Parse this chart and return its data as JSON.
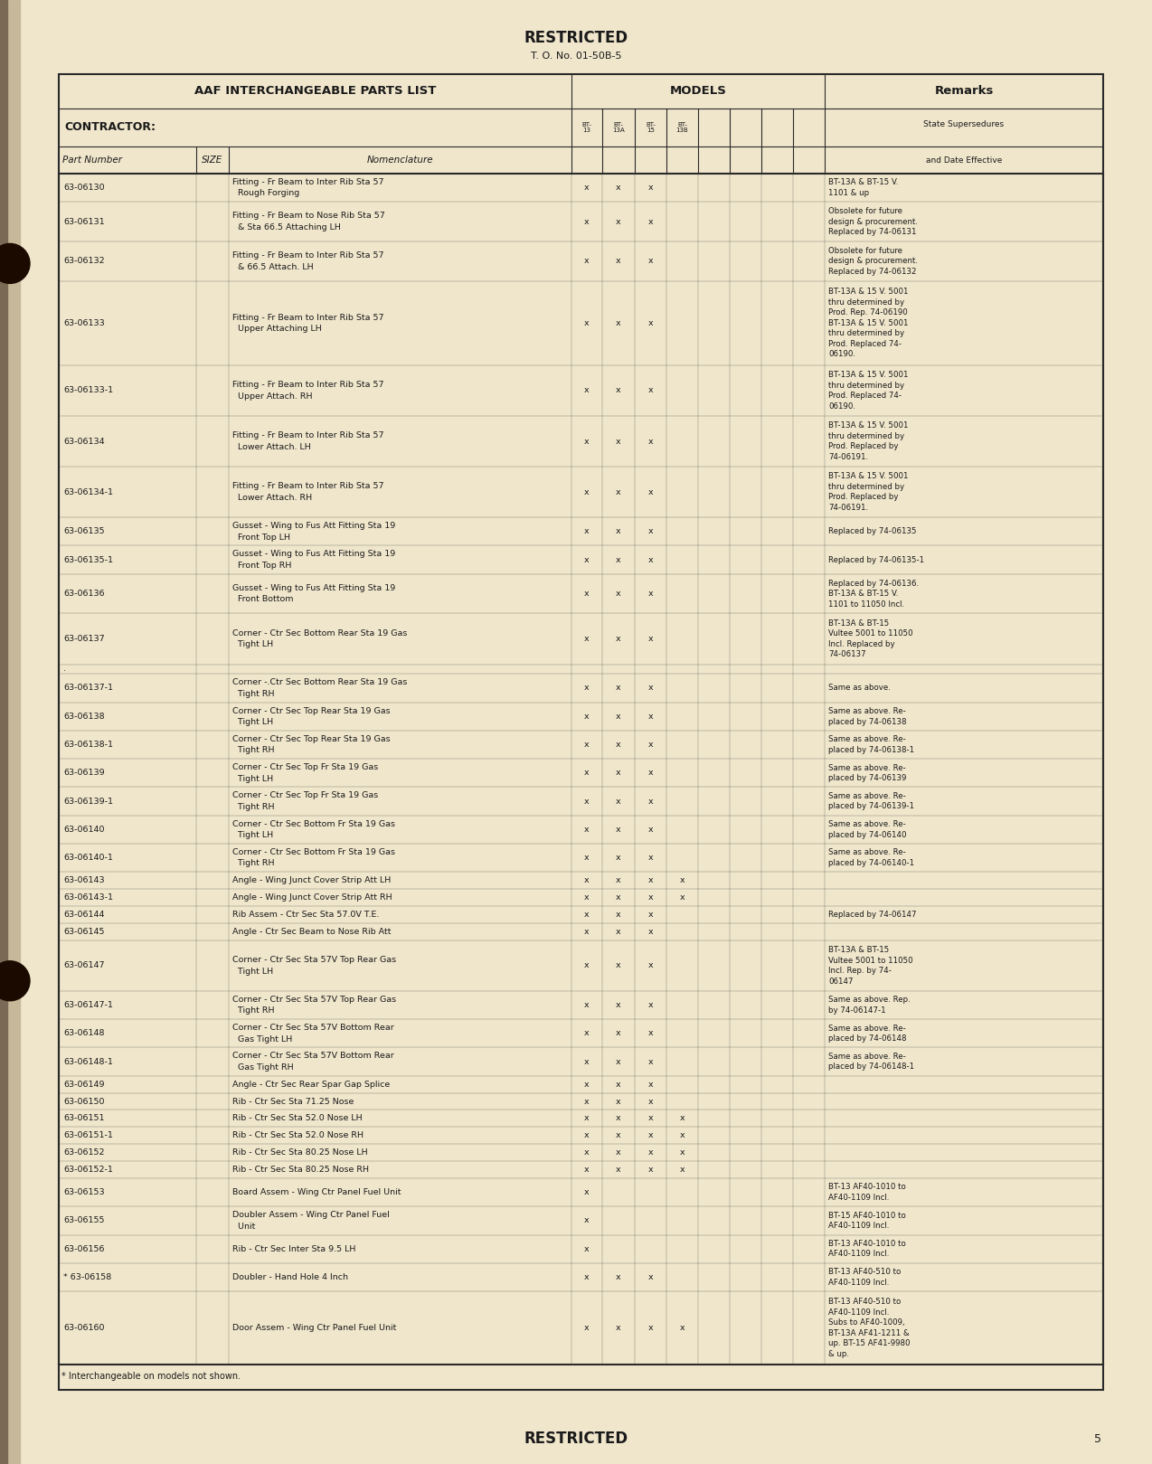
{
  "page_bg": "#f0e6cc",
  "title_top": "RESTRICTED",
  "subtitle_top": "T. O. No. 01-50B-5",
  "title_bottom": "RESTRICTED",
  "page_number": "5",
  "footnote": "* Interchangeable on models not shown.",
  "header_main": "AAF INTERCHANGEABLE PARTS LIST",
  "header_models": "MODELS",
  "header_remarks": "Remarks",
  "header_contractor": "CONTRACTOR:",
  "header_part_number": "Part Number",
  "header_size": "SIZE",
  "header_nomenclature": "Nomenclature",
  "header_state": "State Supersedures",
  "header_date": "and Date Effective",
  "rows": [
    {
      "part": "63-06130",
      "nom": "Fitting - Fr Beam to Inter Rib Sta 57\n  Rough Forging",
      "bt13": "x",
      "bt13a": "x",
      "bt15": "x",
      "bt13b": "",
      "extra": [
        "",
        "",
        "",
        ""
      ],
      "remarks": "BT-13A & BT-15 V.\n1101 & up"
    },
    {
      "part": "63-06131",
      "nom": "Fitting - Fr Beam to Nose Rib Sta 57\n  & Sta 66.5 Attaching LH",
      "bt13": "x",
      "bt13a": "x",
      "bt15": "x",
      "bt13b": "",
      "extra": [
        "",
        "",
        "",
        ""
      ],
      "remarks": "Obsolete for future\ndesign & procurement.\nReplaced by 74-06131"
    },
    {
      "part": "63-06132",
      "nom": "Fitting - Fr Beam to Inter Rib Sta 57\n  & 66.5 Attach. LH",
      "bt13": "x",
      "bt13a": "x",
      "bt15": "x",
      "bt13b": "",
      "extra": [
        "",
        "",
        "",
        ""
      ],
      "remarks": "Obsolete for future\ndesign & procurement.\nReplaced by 74-06132"
    },
    {
      "part": "63-06133",
      "nom": "Fitting - Fr Beam to Inter Rib Sta 57\n  Upper Attaching LH",
      "bt13": "x",
      "bt13a": "x",
      "bt15": "x",
      "bt13b": "",
      "extra": [
        "",
        "",
        "",
        ""
      ],
      "remarks": "BT-13A & 15 V. 5001\nthru determined by\nProd. Rep. 74-06190\nBT-13A & 15 V. 5001\nthru determined by\nProd. Replaced 74-\n06190."
    },
    {
      "part": "63-06133-1",
      "nom": "Fitting - Fr Beam to Inter Rib Sta 57\n  Upper Attach. RH",
      "bt13": "x",
      "bt13a": "x",
      "bt15": "x",
      "bt13b": "",
      "extra": [
        "",
        "",
        "",
        ""
      ],
      "remarks": "BT-13A & 15 V. 5001\nthru determined by\nProd. Replaced 74-\n06190."
    },
    {
      "part": "63-06134",
      "nom": "Fitting - Fr Beam to Inter Rib Sta 57\n  Lower Attach. LH",
      "bt13": "x",
      "bt13a": "x",
      "bt15": "x",
      "bt13b": "",
      "extra": [
        "",
        "",
        "",
        ""
      ],
      "remarks": "BT-13A & 15 V. 5001\nthru determined by\nProd. Replaced by\n74-06191."
    },
    {
      "part": "63-06134-1",
      "nom": "Fitting - Fr Beam to Inter Rib Sta 57\n  Lower Attach. RH",
      "bt13": "x",
      "bt13a": "x",
      "bt15": "x",
      "bt13b": "",
      "extra": [
        "",
        "",
        "",
        ""
      ],
      "remarks": "BT-13A & 15 V. 5001\nthru determined by\nProd. Replaced by\n74-06191."
    },
    {
      "part": "63-06135",
      "nom": "Gusset - Wing to Fus Att Fitting Sta 19\n  Front Top LH",
      "bt13": "x",
      "bt13a": "x",
      "bt15": "x",
      "bt13b": "",
      "extra": [
        "",
        "",
        "",
        ""
      ],
      "remarks": "Replaced by 74-06135"
    },
    {
      "part": "63-06135-1",
      "nom": "Gusset - Wing to Fus Att Fitting Sta 19\n  Front Top RH",
      "bt13": "x",
      "bt13a": "x",
      "bt15": "x",
      "bt13b": "",
      "extra": [
        "",
        "",
        "",
        ""
      ],
      "remarks": "Replaced by 74-06135-1"
    },
    {
      "part": "63-06136",
      "nom": "Gusset - Wing to Fus Att Fitting Sta 19\n  Front Bottom",
      "bt13": "x",
      "bt13a": "x",
      "bt15": "x",
      "bt13b": "",
      "extra": [
        "",
        "",
        "",
        ""
      ],
      "remarks": "Replaced by 74-06136.\nBT-13A & BT-15 V.\n1101 to 11050 Incl."
    },
    {
      "part": "63-06137",
      "nom": "Corner - Ctr Sec Bottom Rear Sta 19 Gas\n  Tight LH",
      "bt13": "x",
      "bt13a": "x",
      "bt15": "x",
      "bt13b": "",
      "extra": [
        "",
        "",
        "",
        ""
      ],
      "remarks": "BT-13A & BT-15\nVultee 5001 to 11050\nIncl. Replaced by\n74-06137"
    },
    {
      "part": ".",
      "nom": "",
      "bt13": "",
      "bt13a": "",
      "bt15": "",
      "bt13b": "",
      "extra": [
        "",
        "",
        "",
        ""
      ],
      "remarks": ""
    },
    {
      "part": "63-06137-1",
      "nom": "Corner -.Ctr Sec Bottom Rear Sta 19 Gas\n  Tight RH",
      "bt13": "x",
      "bt13a": "x",
      "bt15": "x",
      "bt13b": "",
      "extra": [
        "",
        "",
        "",
        ""
      ],
      "remarks": "Same as above."
    },
    {
      "part": "63-06138",
      "nom": "Corner - Ctr Sec Top Rear Sta 19 Gas\n  Tight LH",
      "bt13": "x",
      "bt13a": "x",
      "bt15": "x",
      "bt13b": "",
      "extra": [
        "",
        "",
        "",
        ""
      ],
      "remarks": "Same as above. Re-\nplaced by 74-06138"
    },
    {
      "part": "63-06138-1",
      "nom": "Corner - Ctr Sec Top Rear Sta 19 Gas\n  Tight RH",
      "bt13": "x",
      "bt13a": "x",
      "bt15": "x",
      "bt13b": "",
      "extra": [
        "",
        "",
        "",
        ""
      ],
      "remarks": "Same as above. Re-\nplaced by 74-06138-1"
    },
    {
      "part": "63-06139",
      "nom": "Corner - Ctr Sec Top Fr Sta 19 Gas\n  Tight LH",
      "bt13": "x",
      "bt13a": "x",
      "bt15": "x",
      "bt13b": "",
      "extra": [
        "",
        "",
        "",
        ""
      ],
      "remarks": "Same as above. Re-\nplaced by 74-06139"
    },
    {
      "part": "63-06139-1",
      "nom": "Corner - Ctr Sec Top Fr Sta 19 Gas\n  Tight RH",
      "bt13": "x",
      "bt13a": "x",
      "bt15": "x",
      "bt13b": "",
      "extra": [
        "",
        "",
        "",
        ""
      ],
      "remarks": "Same as above. Re-\nplaced by 74-06139-1"
    },
    {
      "part": "63-06140",
      "nom": "Corner - Ctr Sec Bottom Fr Sta 19 Gas\n  Tight LH",
      "bt13": "x",
      "bt13a": "x",
      "bt15": "x",
      "bt13b": "",
      "extra": [
        "",
        "",
        "",
        ""
      ],
      "remarks": "Same as above. Re-\nplaced by 74-06140"
    },
    {
      "part": "63-06140-1",
      "nom": "Corner - Ctr Sec Bottom Fr Sta 19 Gas\n  Tight RH",
      "bt13": "x",
      "bt13a": "x",
      "bt15": "x",
      "bt13b": "",
      "extra": [
        "",
        "",
        "",
        ""
      ],
      "remarks": "Same as above. Re-\nplaced by 74-06140-1"
    },
    {
      "part": "63-06143",
      "nom": "Angle - Wing Junct Cover Strip Att LH",
      "bt13": "x",
      "bt13a": "x",
      "bt15": "x",
      "bt13b": "x",
      "extra": [
        "",
        "",
        "",
        ""
      ],
      "remarks": ""
    },
    {
      "part": "63-06143-1",
      "nom": "Angle - Wing Junct Cover Strip Att RH",
      "bt13": "x",
      "bt13a": "x",
      "bt15": "x",
      "bt13b": "x",
      "extra": [
        "",
        "",
        "",
        ""
      ],
      "remarks": ""
    },
    {
      "part": "63-06144",
      "nom": "Rib Assem - Ctr Sec Sta 57.0V T.E.",
      "bt13": "x",
      "bt13a": "x",
      "bt15": "x",
      "bt13b": "",
      "extra": [
        "",
        "",
        "",
        ""
      ],
      "remarks": "Replaced by 74-06147"
    },
    {
      "part": "63-06145",
      "nom": "Angle - Ctr Sec Beam to Nose Rib Att",
      "bt13": "x",
      "bt13a": "x",
      "bt15": "x",
      "bt13b": "",
      "extra": [
        "",
        "",
        "",
        ""
      ],
      "remarks": ""
    },
    {
      "part": "63-06147",
      "nom": "Corner - Ctr Sec Sta 57V Top Rear Gas\n  Tight LH",
      "bt13": "x",
      "bt13a": "x",
      "bt15": "x",
      "bt13b": "",
      "extra": [
        "",
        "",
        "",
        ""
      ],
      "remarks": "BT-13A & BT-15\nVultee 5001 to 11050\nIncl. Rep. by 74-\n06147"
    },
    {
      "part": "63-06147-1",
      "nom": "Corner - Ctr Sec Sta 57V Top Rear Gas\n  Tight RH",
      "bt13": "x",
      "bt13a": "x",
      "bt15": "x",
      "bt13b": "",
      "extra": [
        "",
        "",
        "",
        ""
      ],
      "remarks": "Same as above. Rep.\nby 74-06147-1"
    },
    {
      "part": "63-06148",
      "nom": "Corner - Ctr Sec Sta 57V Bottom Rear\n  Gas Tight LH",
      "bt13": "x",
      "bt13a": "x",
      "bt15": "x",
      "bt13b": "",
      "extra": [
        "",
        "",
        "",
        ""
      ],
      "remarks": "Same as above. Re-\nplaced by 74-06148"
    },
    {
      "part": "63-06148-1",
      "nom": "Corner - Ctr Sec Sta 57V Bottom Rear\n  Gas Tight RH",
      "bt13": "x",
      "bt13a": "x",
      "bt15": "x",
      "bt13b": "",
      "extra": [
        "",
        "",
        "",
        ""
      ],
      "remarks": "Same as above. Re-\nplaced by 74-06148-1"
    },
    {
      "part": "63-06149",
      "nom": "Angle - Ctr Sec Rear Spar Gap Splice",
      "bt13": "x",
      "bt13a": "x",
      "bt15": "x",
      "bt13b": "",
      "extra": [
        "",
        "",
        "",
        ""
      ],
      "remarks": ""
    },
    {
      "part": "63-06150",
      "nom": "Rib - Ctr Sec Sta 71.25 Nose",
      "bt13": "x",
      "bt13a": "x",
      "bt15": "x",
      "bt13b": "",
      "extra": [
        "",
        "",
        "",
        ""
      ],
      "remarks": ""
    },
    {
      "part": "63-06151",
      "nom": "Rib - Ctr Sec Sta 52.0 Nose LH",
      "bt13": "x",
      "bt13a": "x",
      "bt15": "x",
      "bt13b": "x",
      "extra": [
        "",
        "",
        "",
        ""
      ],
      "remarks": ""
    },
    {
      "part": "63-06151-1",
      "nom": "Rib - Ctr Sec Sta 52.0 Nose RH",
      "bt13": "x",
      "bt13a": "x",
      "bt15": "x",
      "bt13b": "x",
      "extra": [
        "",
        "",
        "",
        ""
      ],
      "remarks": ""
    },
    {
      "part": "63-06152",
      "nom": "Rib - Ctr Sec Sta 80.25 Nose LH",
      "bt13": "x",
      "bt13a": "x",
      "bt15": "x",
      "bt13b": "x",
      "extra": [
        "",
        "",
        "",
        ""
      ],
      "remarks": ""
    },
    {
      "part": "63-06152-1",
      "nom": "Rib - Ctr Sec Sta 80.25 Nose RH",
      "bt13": "x",
      "bt13a": "x",
      "bt15": "x",
      "bt13b": "x",
      "extra": [
        "",
        "",
        "",
        ""
      ],
      "remarks": ""
    },
    {
      "part": "63-06153",
      "nom": "Board Assem - Wing Ctr Panel Fuel Unit",
      "bt13": "x",
      "bt13a": "",
      "bt15": "",
      "bt13b": "",
      "extra": [
        "",
        "",
        "",
        ""
      ],
      "remarks": "BT-13 AF40-1010 to\nAF40-1109 Incl."
    },
    {
      "part": "63-06155",
      "nom": "Doubler Assem - Wing Ctr Panel Fuel\n  Unit",
      "bt13": "x",
      "bt13a": "",
      "bt15": "",
      "bt13b": "",
      "extra": [
        "",
        "",
        "",
        ""
      ],
      "remarks": "BT-15 AF40-1010 to\nAF40-1109 Incl."
    },
    {
      "part": "63-06156",
      "nom": "Rib - Ctr Sec Inter Sta 9.5 LH",
      "bt13": "x",
      "bt13a": "",
      "bt15": "",
      "bt13b": "",
      "extra": [
        "",
        "",
        "",
        ""
      ],
      "remarks": "BT-13 AF40-1010 to\nAF40-1109 Incl."
    },
    {
      "part": "* 63-06158",
      "nom": "Doubler - Hand Hole 4 Inch",
      "bt13": "x",
      "bt13a": "x",
      "bt15": "x",
      "bt13b": "",
      "extra": [
        "",
        "",
        "",
        ""
      ],
      "remarks": "BT-13 AF40-510 to\nAF40-1109 Incl."
    },
    {
      "part": "63-06160",
      "nom": "Door Assem - Wing Ctr Panel Fuel Unit",
      "bt13": "x",
      "bt13a": "x",
      "bt15": "x",
      "bt13b": "x",
      "extra": [
        "",
        "",
        "",
        ""
      ],
      "remarks": "BT-13 AF40-510 to\nAF40-1109 Incl.\nSubs to AF40-1009,\nBT-13A AF41-1211 &\nup. BT-15 AF41-9980\n& up."
    }
  ]
}
